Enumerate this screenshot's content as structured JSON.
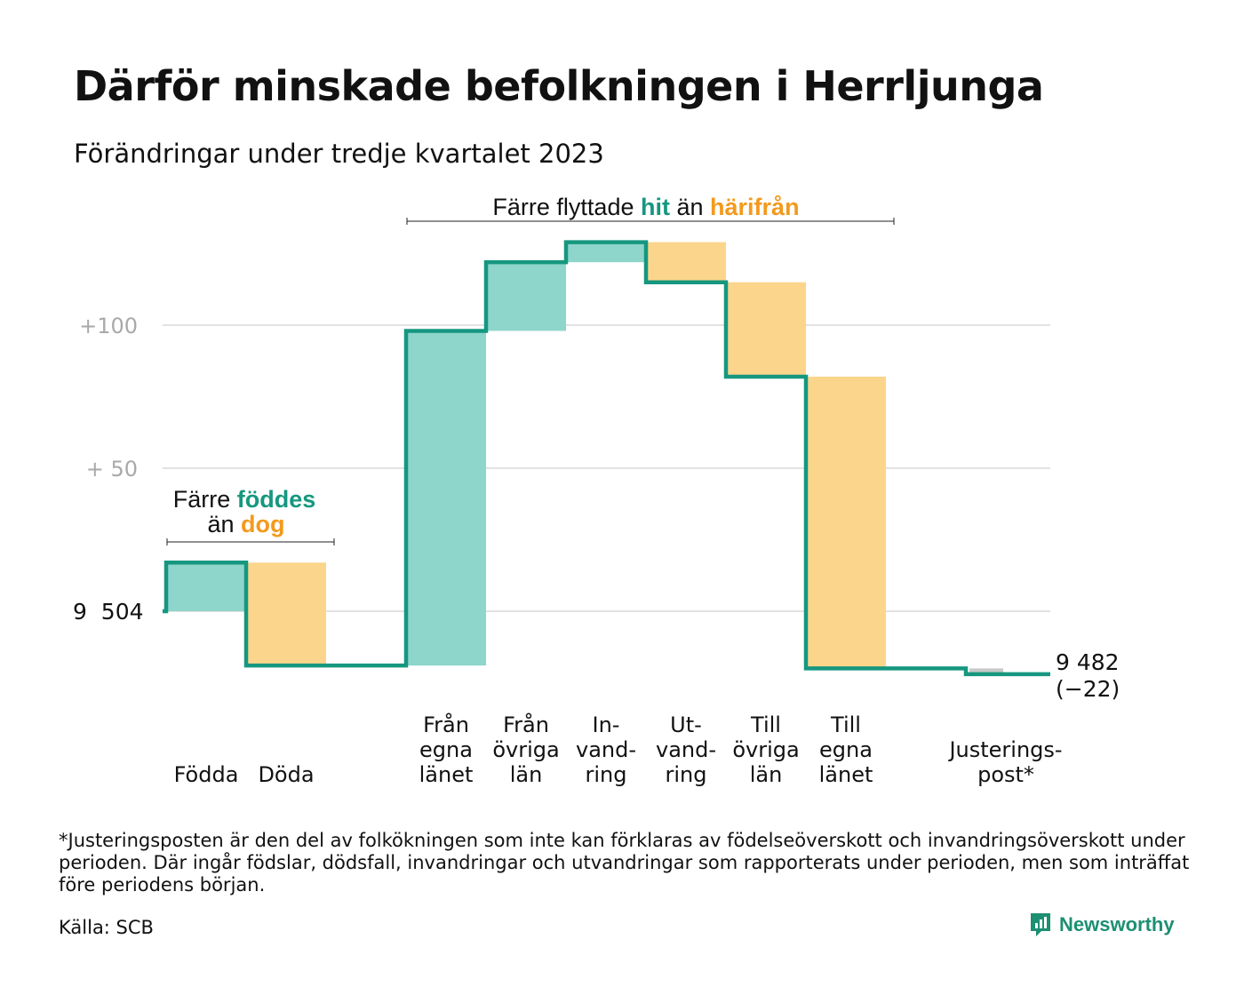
{
  "title": "Därför minskade befolkningen i Herrljunga",
  "subtitle": "Förändringar under tredje kvartalet 2023",
  "colors": {
    "line": "#16977f",
    "increase": "#8ed5cb",
    "decrease": "#fbd58b",
    "neutral": "#c8c8c8",
    "grid": "#e2e2e2",
    "tick_text": "#a9a9a9",
    "teal_text": "#16977f",
    "orange_text": "#f39a1c"
  },
  "chart_data": {
    "type": "waterfall",
    "start_value": 9504,
    "end_value": 9482,
    "start_label": "9  504",
    "end_label_line1": "9 482",
    "end_label_line2": "(−22)",
    "ytick_labels": [
      "+100",
      "+  50"
    ],
    "yticks_relative": [
      100,
      50
    ],
    "ylim_relative": [
      -22,
      130
    ],
    "steps": [
      {
        "label": [
          "Födda"
        ],
        "delta": 17,
        "kind": "increase"
      },
      {
        "label": [
          "Döda"
        ],
        "delta": -36,
        "kind": "decrease"
      },
      {
        "label": [],
        "delta": 0,
        "kind": "gap"
      },
      {
        "label": [
          "Från",
          "egna",
          "länet"
        ],
        "delta": 117,
        "kind": "increase"
      },
      {
        "label": [
          "Från",
          "övriga",
          "län"
        ],
        "delta": 24,
        "kind": "increase"
      },
      {
        "label": [
          "In-",
          "vand-",
          "ring"
        ],
        "delta": 7,
        "kind": "increase"
      },
      {
        "label": [
          "Ut-",
          "vand-",
          "ring"
        ],
        "delta": -14,
        "kind": "decrease"
      },
      {
        "label": [
          "Till",
          "övriga",
          "län"
        ],
        "delta": -33,
        "kind": "decrease"
      },
      {
        "label": [
          "Till",
          "egna",
          "länet"
        ],
        "delta": -102,
        "kind": "decrease"
      },
      {
        "label": [],
        "delta": 0,
        "kind": "gap"
      },
      {
        "label": [
          "Justerings-",
          "post*"
        ],
        "delta": -2,
        "kind": "neutral"
      }
    ],
    "annotations": [
      {
        "parts": [
          [
            "Färre ",
            "plain"
          ],
          [
            "föddes",
            "teal"
          ],
          [
            "än ",
            "plain"
          ],
          [
            "dog",
            "orange"
          ]
        ]
      },
      {
        "parts": [
          [
            "Färre flyttade ",
            "plain"
          ],
          [
            "hit",
            "teal"
          ],
          [
            " än ",
            "plain"
          ],
          [
            "härifrån",
            "orange"
          ]
        ]
      }
    ]
  },
  "footnote": "*Justeringsposten är den del av folkökningen som inte kan förklaras av födelseöverskott och invandringsöverskott under perioden. Där ingår födslar, dödsfall, invandringar och utvandringar som rapporterats under perioden, men som inträffat före periodens början.",
  "source": "Källa: SCB",
  "brand": {
    "name": "Newsworthy",
    "icon": "newsworthy-logo-icon"
  }
}
